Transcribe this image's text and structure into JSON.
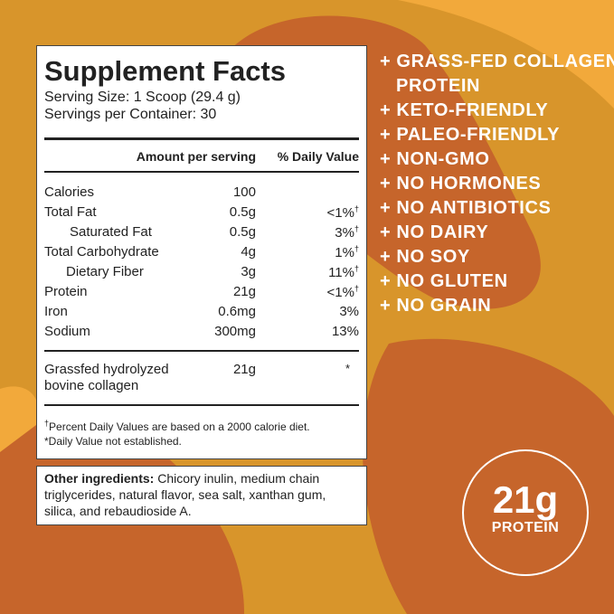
{
  "facts": {
    "title": "Supplement Facts",
    "serving_size": "Serving Size: 1 Scoop (29.4 g)",
    "servings_per_container": "Servings per Container: 30",
    "header": {
      "amount": "Amount per serving",
      "dv": "% Daily Value"
    },
    "rows": [
      {
        "name": "Calories",
        "amount": "100"
      },
      {
        "name": "Total Fat",
        "amount": "0.5g",
        "dv": "<1%",
        "mark": "†"
      },
      {
        "name": "Saturated Fat",
        "amount": "0.5g",
        "dv": "3%",
        "mark": "†"
      },
      {
        "name": "Total Carbohydrate",
        "amount": "4g",
        "dv": "1%",
        "mark": "†"
      },
      {
        "name": "Dietary Fiber",
        "amount": "3g",
        "dv": "11%",
        "mark": "†"
      },
      {
        "name": "Protein",
        "amount": "21g",
        "dv": "<1%",
        "mark": "†"
      },
      {
        "name": "Iron",
        "amount": "0.6mg",
        "dv": "3%"
      },
      {
        "name": "Sodium",
        "amount": "300mg",
        "dv": "13%"
      }
    ],
    "collagen": {
      "name": "Grassfed hydrolyzed bovine collagen",
      "amount": "21g",
      "dv": "*"
    },
    "footnotes": [
      {
        "mark": "†",
        "text": "Percent Daily Values are based on a 2000 calorie diet."
      },
      {
        "text": "*Daily Value not established."
      }
    ]
  },
  "ingredients": {
    "label": "Other ingredients:",
    "text": " Chicory inulin, medium chain triglycerides, natural flavor, sea salt, xanthan gum, silica, and rebaudioside A."
  },
  "claims": [
    "+ GRASS-FED COLLAGEN PROTEIN",
    "+ KETO-FRIENDLY",
    "+ PALEO-FRIENDLY",
    "+ NON-GMO",
    "+ NO HORMONES",
    "+ NO ANTIBIOTICS",
    "+ NO DAIRY",
    "+ NO SOY",
    "+ NO GLUTEN",
    "+ NO GRAIN"
  ],
  "badge": {
    "amount": "21g",
    "label": "PROTEIN"
  }
}
